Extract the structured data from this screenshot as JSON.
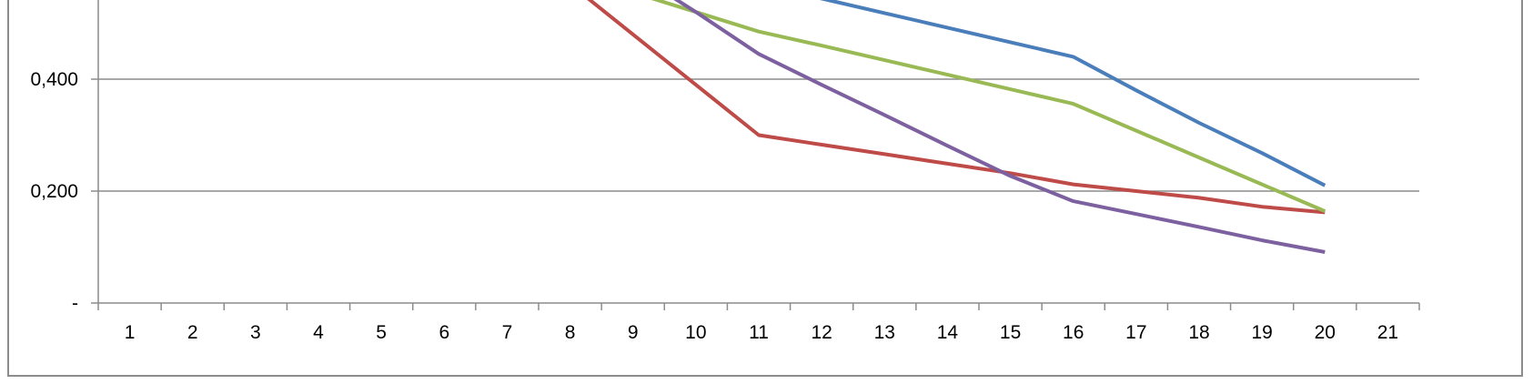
{
  "chart_data": {
    "type": "line",
    "title": "",
    "xlabel": "",
    "ylabel": "",
    "x": [
      1,
      2,
      3,
      4,
      5,
      6,
      7,
      8,
      9,
      10,
      11,
      12,
      13,
      14,
      15,
      16,
      17,
      18,
      19,
      20,
      21
    ],
    "x_tick_labels": [
      "1",
      "2",
      "3",
      "4",
      "5",
      "6",
      "7",
      "8",
      "9",
      "10",
      "11",
      "12",
      "13",
      "14",
      "15",
      "16",
      "17",
      "18",
      "19",
      "20",
      "21"
    ],
    "y_ticks": [
      0,
      0.2,
      0.4
    ],
    "y_tick_labels": [
      "-",
      "0,200",
      "0,400"
    ],
    "ylim": [
      0,
      0.57
    ],
    "grid": true,
    "legend": "none",
    "series": [
      {
        "color": "#4a7ebb",
        "points": [
          [
            11,
            0.57
          ],
          [
            12,
            0.544
          ],
          [
            13,
            0.518
          ],
          [
            14,
            0.492
          ],
          [
            15,
            0.466
          ],
          [
            16,
            0.44
          ],
          [
            17,
            0.38
          ],
          [
            18,
            0.322
          ],
          [
            19,
            0.268
          ],
          [
            20,
            0.21
          ]
        ]
      },
      {
        "color": "#be4b48",
        "points": [
          [
            8,
            0.57
          ],
          [
            9,
            0.48
          ],
          [
            10,
            0.39
          ],
          [
            11,
            0.3
          ],
          [
            12,
            0.283
          ],
          [
            13,
            0.266
          ],
          [
            14,
            0.249
          ],
          [
            15,
            0.232
          ],
          [
            16,
            0.212
          ],
          [
            17,
            0.2
          ],
          [
            18,
            0.188
          ],
          [
            19,
            0.172
          ],
          [
            20,
            0.162
          ]
        ]
      },
      {
        "color": "#98b954",
        "points": [
          [
            8.6,
            0.57
          ],
          [
            9,
            0.555
          ],
          [
            10,
            0.52
          ],
          [
            11,
            0.485
          ],
          [
            12,
            0.46
          ],
          [
            13,
            0.434
          ],
          [
            14,
            0.408
          ],
          [
            15,
            0.382
          ],
          [
            16,
            0.356
          ],
          [
            17,
            0.308
          ],
          [
            18,
            0.26
          ],
          [
            19,
            0.212
          ],
          [
            20,
            0.164
          ]
        ]
      },
      {
        "color": "#7d60a0",
        "points": [
          [
            9.3,
            0.57
          ],
          [
            10,
            0.52
          ],
          [
            11,
            0.445
          ],
          [
            12,
            0.39
          ],
          [
            13,
            0.336
          ],
          [
            14,
            0.281
          ],
          [
            15,
            0.227
          ],
          [
            16,
            0.182
          ],
          [
            17,
            0.159
          ],
          [
            18,
            0.136
          ],
          [
            19,
            0.112
          ],
          [
            20,
            0.091
          ]
        ]
      }
    ]
  }
}
